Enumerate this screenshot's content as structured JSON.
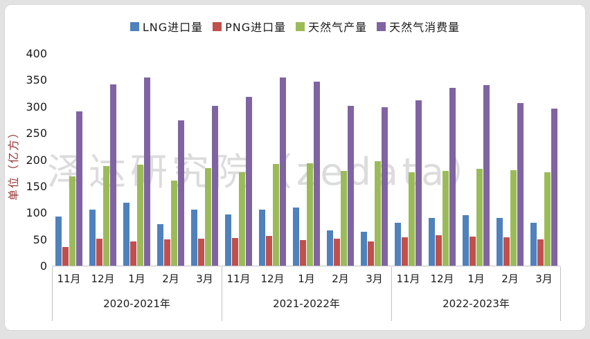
{
  "watermark": "泽达研究院（zedata）",
  "y_axis": {
    "title": "单位（亿方）",
    "title_color": "#943634",
    "ticks": [
      0,
      50,
      100,
      150,
      200,
      250,
      300,
      350,
      400
    ]
  },
  "legend": [
    {
      "label": "LNG进口量",
      "color": "#4F81BD"
    },
    {
      "label": "PNG进口量",
      "color": "#C0504D"
    },
    {
      "label": "天然气产量",
      "color": "#9BBB59"
    },
    {
      "label": "天然气消费量",
      "color": "#8064A2"
    }
  ],
  "chart_data": {
    "type": "bar",
    "title": "",
    "ylabel": "单位（亿方）",
    "ylim": [
      0,
      400
    ],
    "ytick_step": 50,
    "grid": false,
    "legend_position": "top",
    "groups": [
      {
        "label": "2020-2021年",
        "months": [
          "11月",
          "12月",
          "1月",
          "2月",
          "3月"
        ]
      },
      {
        "label": "2021-2022年",
        "months": [
          "11月",
          "12月",
          "1月",
          "2月",
          "3月"
        ]
      },
      {
        "label": "2022-2023年",
        "months": [
          "11月",
          "12月",
          "1月",
          "2月",
          "3月"
        ]
      }
    ],
    "series": [
      {
        "name": "LNG进口量",
        "color": "#4F81BD",
        "values": [
          92,
          106,
          118,
          78,
          106,
          97,
          106,
          109,
          66,
          64,
          81,
          90,
          95,
          90,
          81
        ]
      },
      {
        "name": "PNG进口量",
        "color": "#C0504D",
        "values": [
          35,
          51,
          45,
          50,
          51,
          52,
          56,
          48,
          51,
          46,
          54,
          57,
          55,
          54,
          50
        ]
      },
      {
        "name": "天然气产量",
        "color": "#9BBB59",
        "values": [
          168,
          187,
          190,
          160,
          184,
          176,
          192,
          193,
          179,
          197,
          176,
          178,
          182,
          180,
          176
        ]
      },
      {
        "name": "天然气消费量",
        "color": "#8064A2",
        "values": [
          291,
          341,
          354,
          273,
          301,
          318,
          355,
          347,
          301,
          298,
          312,
          335,
          340,
          306,
          296
        ]
      }
    ]
  }
}
